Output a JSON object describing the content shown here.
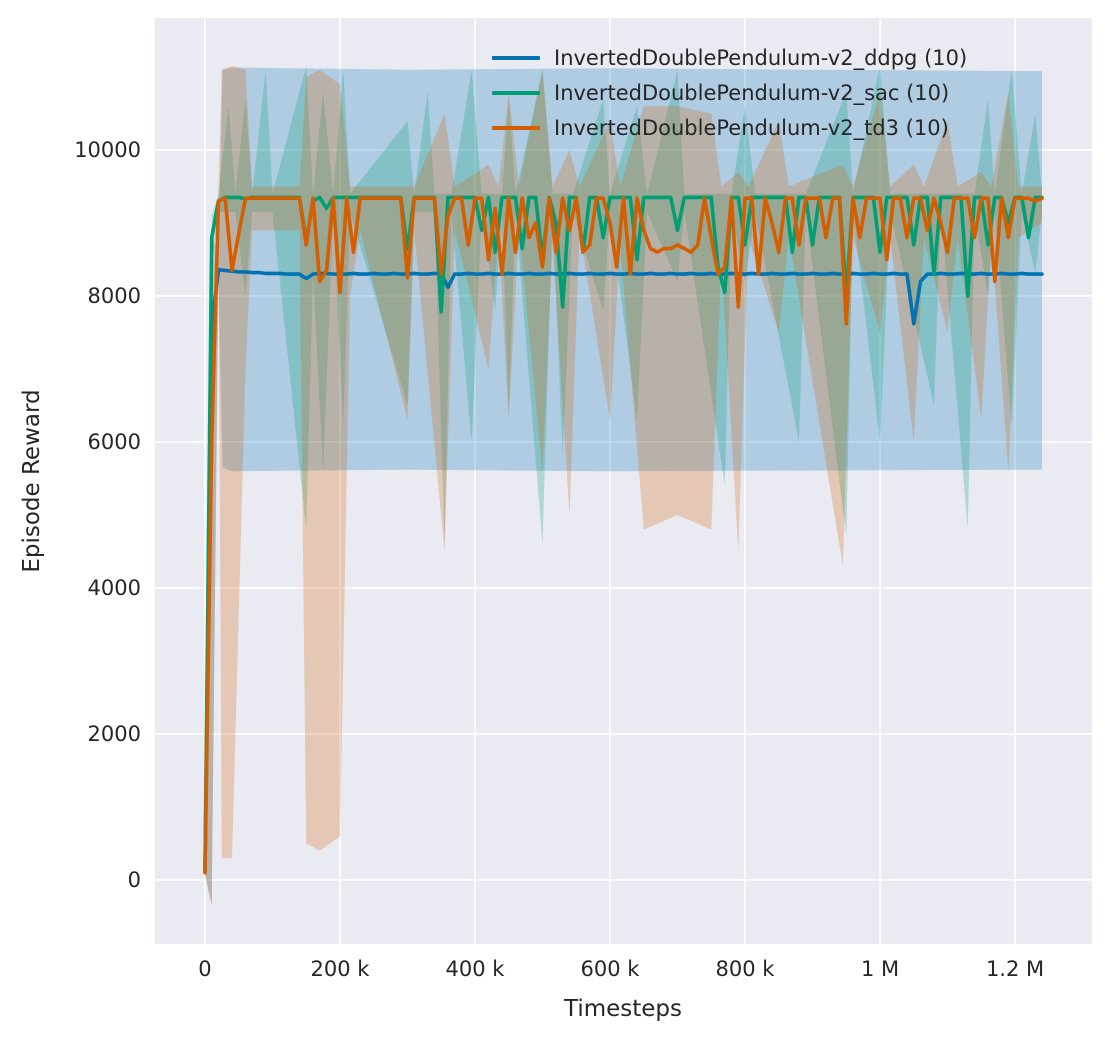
{
  "chart_data": {
    "type": "line",
    "title": "",
    "xlabel": "Timesteps",
    "ylabel": "Episode Reward",
    "xlim": [
      -74000,
      1314000
    ],
    "ylim": [
      -877,
      11808
    ],
    "grid": true,
    "legend_position": "upper center-right inside axes, no frame",
    "colors": {
      "plot_bg": "#eaeaf2",
      "grid": "#ffffff",
      "text": "#262626"
    },
    "x_ticks": {
      "values": [
        0,
        200000,
        400000,
        600000,
        800000,
        1000000,
        1200000
      ],
      "labels": [
        "0",
        "200 k",
        "400 k",
        "600 k",
        "800 k",
        "1 M",
        "1.2 M"
      ]
    },
    "y_ticks": {
      "values": [
        0,
        2000,
        4000,
        6000,
        8000,
        10000
      ],
      "labels": [
        "0",
        "2000",
        "4000",
        "6000",
        "8000",
        "10000"
      ]
    },
    "band_opacity": 0.25,
    "series": [
      {
        "name": "InvertedDoublePendulum-v2_ddpg (10)",
        "color": "#0173b2",
        "x_start": 0,
        "x_step": 10000,
        "values": [
          120,
          7600,
          8360,
          8350,
          8340,
          8330,
          8330,
          8320,
          8320,
          8310,
          8310,
          8310,
          8300,
          8300,
          8300,
          8240,
          8300,
          8310,
          8310,
          8300,
          8300,
          8300,
          8310,
          8300,
          8300,
          8310,
          8300,
          8300,
          8310,
          8300,
          8300,
          8310,
          8300,
          8300,
          8310,
          8300,
          8120,
          8300,
          8300,
          8310,
          8300,
          8300,
          8310,
          8300,
          8300,
          8310,
          8300,
          8300,
          8310,
          8300,
          8300,
          8310,
          8300,
          8300,
          8310,
          8300,
          8300,
          8310,
          8300,
          8300,
          8310,
          8300,
          8300,
          8310,
          8300,
          8300,
          8310,
          8300,
          8300,
          8310,
          8300,
          8300,
          8310,
          8300,
          8300,
          8310,
          8300,
          8300,
          8310,
          8300,
          8300,
          8310,
          8300,
          8300,
          8310,
          8300,
          8300,
          8310,
          8300,
          8300,
          8310,
          8300,
          8300,
          8310,
          8300,
          8300,
          8310,
          8300,
          8300,
          8310,
          8300,
          8300,
          8310,
          8300,
          8300,
          7620,
          8200,
          8300,
          8300,
          8310,
          8300,
          8300,
          8310,
          8300,
          8300,
          8310,
          8300,
          8300,
          8310,
          8300,
          8300,
          8310,
          8300,
          8300,
          8300
        ],
        "band": {
          "x": [
            0,
            10000,
            20000,
            26000,
            40000,
            300000,
            600000,
            900000,
            1240000
          ],
          "lower": [
            100,
            -350,
            8200,
            5650,
            5600,
            5620,
            5600,
            5610,
            5620
          ],
          "upper": [
            200,
            8800,
            8600,
            11100,
            11130,
            11100,
            11120,
            11100,
            11080
          ]
        }
      },
      {
        "name": "InvertedDoublePendulum-v2_sac (10)",
        "color": "#029e73",
        "x_start": 0,
        "x_step": 10000,
        "values": [
          150,
          8800,
          9300,
          9350,
          9350,
          9350,
          9330,
          9350,
          9350,
          9350,
          9350,
          9350,
          9350,
          9350,
          9350,
          8750,
          9300,
          9350,
          9200,
          9350,
          9350,
          9350,
          9350,
          9350,
          9350,
          9350,
          9350,
          9350,
          9350,
          9350,
          8640,
          9350,
          9350,
          9350,
          9350,
          7780,
          9350,
          9350,
          9350,
          9350,
          9350,
          8900,
          9350,
          8600,
          9350,
          9350,
          9350,
          8650,
          9350,
          9350,
          8500,
          9350,
          9000,
          7850,
          9350,
          9350,
          8600,
          9350,
          9350,
          8800,
          9350,
          9350,
          9350,
          9350,
          8500,
          9350,
          9350,
          9350,
          9350,
          9350,
          8900,
          9350,
          9350,
          9350,
          9350,
          9350,
          8400,
          8050,
          9350,
          9350,
          8700,
          9350,
          9350,
          9350,
          9350,
          9350,
          9350,
          8600,
          9350,
          9350,
          8700,
          9350,
          9350,
          9350,
          9350,
          8000,
          9350,
          9350,
          9350,
          9350,
          8600,
          9350,
          9350,
          9350,
          9350,
          8700,
          9350,
          9350,
          8300,
          9350,
          9350,
          9350,
          9350,
          8000,
          9350,
          9350,
          8700,
          9350,
          9350,
          9000,
          9350,
          9350,
          8800,
          9350,
          9350
        ],
        "band": {
          "x": [
            0,
            10000,
            20000,
            35000,
            45000,
            60000,
            70000,
            90000,
            100000,
            150000,
            160000,
            175000,
            190000,
            205000,
            215000,
            300000,
            310000,
            330000,
            340000,
            355000,
            365000,
            395000,
            410000,
            430000,
            440000,
            450000,
            460000,
            500000,
            515000,
            530000,
            545000,
            590000,
            600000,
            640000,
            655000,
            700000,
            710000,
            770000,
            780000,
            800000,
            815000,
            880000,
            890000,
            950000,
            960000,
            1000000,
            1015000,
            1080000,
            1090000,
            1130000,
            1140000,
            1160000,
            1170000,
            1195000,
            1210000,
            1230000,
            1240000
          ],
          "lower": [
            100,
            8400,
            9150,
            9150,
            9150,
            8000,
            9150,
            9150,
            9150,
            4800,
            8300,
            5600,
            9100,
            6200,
            9150,
            6500,
            9150,
            9150,
            9150,
            4600,
            9150,
            6000,
            9150,
            7800,
            9150,
            6400,
            9150,
            4600,
            9150,
            5800,
            9150,
            7800,
            9150,
            6300,
            9150,
            8200,
            9150,
            5400,
            9150,
            8200,
            9150,
            6000,
            9150,
            4700,
            9150,
            6000,
            9150,
            6500,
            9150,
            4800,
            9150,
            8000,
            9150,
            6200,
            9150,
            8300,
            9150
          ],
          "upper": [
            250,
            9100,
            9400,
            10600,
            9400,
            10700,
            9400,
            11100,
            9400,
            11150,
            9400,
            10800,
            9400,
            11100,
            9400,
            10400,
            9400,
            10800,
            9400,
            9400,
            9400,
            11100,
            9400,
            9400,
            9400,
            10700,
            9400,
            11100,
            9400,
            9400,
            9400,
            10700,
            9400,
            10600,
            9400,
            11100,
            9400,
            9400,
            9400,
            10600,
            9400,
            9400,
            9400,
            10800,
            9400,
            11150,
            9400,
            9400,
            9400,
            9400,
            9400,
            10700,
            9400,
            11100,
            9400,
            10500,
            9400
          ]
        }
      },
      {
        "name": "InvertedDoublePendulum-v2_td3 (10)",
        "color": "#d55e00",
        "x_start": 0,
        "x_step": 10000,
        "values": [
          100,
          6000,
          9300,
          9340,
          8350,
          8850,
          9340,
          9340,
          9340,
          9340,
          9340,
          9340,
          9340,
          9340,
          9340,
          8700,
          9340,
          8200,
          8350,
          9340,
          8050,
          9340,
          8600,
          9340,
          9340,
          9340,
          9340,
          9340,
          9340,
          9340,
          8250,
          9340,
          9340,
          9340,
          9340,
          8300,
          9100,
          9340,
          9340,
          8700,
          9340,
          9340,
          8500,
          9200,
          8300,
          9340,
          8600,
          9340,
          8800,
          9000,
          8400,
          9340,
          8600,
          9340,
          8900,
          9340,
          8600,
          8700,
          9340,
          9340,
          9000,
          8400,
          9340,
          8300,
          9340,
          8900,
          8650,
          8600,
          8650,
          8650,
          8700,
          8650,
          8600,
          8700,
          9340,
          8800,
          8300,
          8400,
          9340,
          7850,
          9340,
          9340,
          8300,
          9340,
          9000,
          8600,
          9340,
          9340,
          8700,
          9340,
          9340,
          9340,
          8800,
          9340,
          9340,
          7620,
          9340,
          8800,
          9340,
          9340,
          9340,
          8500,
          9340,
          9340,
          8800,
          9340,
          9340,
          8900,
          9340,
          9000,
          8600,
          9340,
          9340,
          9340,
          8800,
          9340,
          9340,
          8200,
          9340,
          8800,
          9340,
          9340,
          9340,
          9300,
          9340
        ],
        "band": {
          "x": [
            0,
            10000,
            20000,
            25000,
            40000,
            60000,
            70000,
            140000,
            150000,
            170000,
            200000,
            215000,
            230000,
            300000,
            310000,
            355000,
            370000,
            420000,
            435000,
            450000,
            465000,
            500000,
            515000,
            540000,
            555000,
            600000,
            615000,
            650000,
            700000,
            750000,
            765000,
            790000,
            805000,
            850000,
            865000,
            945000,
            960000,
            1000000,
            1015000,
            1050000,
            1065000,
            1100000,
            1115000,
            1150000,
            1165000,
            1190000,
            1205000,
            1240000
          ],
          "lower": [
            50,
            -350,
            8800,
            300,
            300,
            7000,
            8900,
            8900,
            500,
            400,
            600,
            8000,
            8900,
            6300,
            8900,
            4500,
            8900,
            7000,
            8900,
            6300,
            8900,
            5600,
            8700,
            5000,
            8900,
            6300,
            8700,
            4800,
            5000,
            4800,
            8500,
            4500,
            8800,
            7500,
            8800,
            4300,
            8800,
            7500,
            8800,
            6000,
            8800,
            7500,
            8800,
            6300,
            8800,
            5600,
            8800,
            9000
          ],
          "upper": [
            200,
            7000,
            9500,
            11100,
            11150,
            11100,
            9500,
            9500,
            11000,
            11100,
            10900,
            9500,
            9500,
            9500,
            9500,
            10500,
            9500,
            9800,
            9500,
            10800,
            9500,
            11100,
            9500,
            10000,
            9500,
            10400,
            9500,
            10600,
            10600,
            10500,
            9500,
            9700,
            9500,
            10400,
            9500,
            9800,
            9500,
            10800,
            9500,
            9800,
            9500,
            10400,
            9500,
            9700,
            9500,
            10800,
            9500,
            9500
          ]
        }
      }
    ]
  }
}
